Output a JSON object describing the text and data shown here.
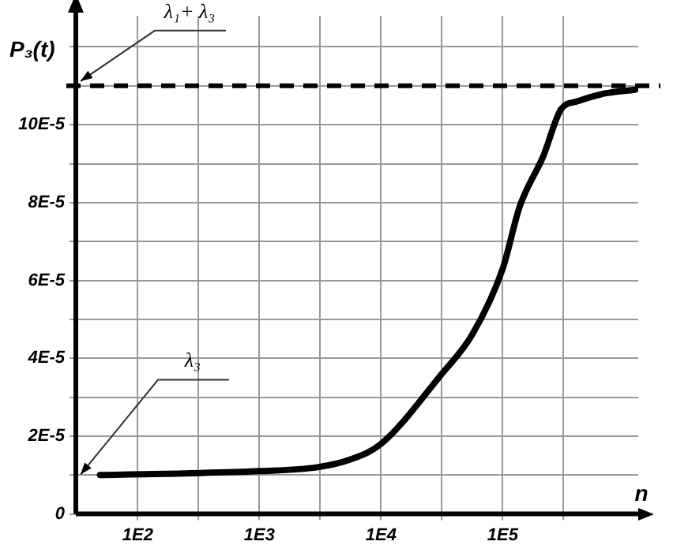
{
  "chart_data": {
    "type": "line",
    "xlabel": "n",
    "ylabel": "P₃(t)",
    "log": "x",
    "grid": true,
    "legend": false,
    "marker": "none",
    "line_style": "solid",
    "x": [
      49,
      1000,
      3000,
      5600,
      10000,
      31600,
      56000,
      100000,
      138000,
      216000,
      302000,
      410000,
      680000,
      1230000
    ],
    "series": [
      {
        "color": "#000000",
        "values": [
          1e-05,
          1.1e-05,
          1.2e-05,
          1.4e-05,
          1.8e-05,
          3.6e-05,
          4.6e-05,
          6.3e-05,
          7.9e-05,
          9.2e-05,
          0.000104,
          0.000106,
          0.000108,
          0.000109
        ]
      }
    ],
    "xlim": [
      31,
      1300000
    ],
    "xticks": [
      {
        "value": 100,
        "label": "1E2"
      },
      {
        "value": 316,
        "label": null
      },
      {
        "value": 1000,
        "label": "1E3"
      },
      {
        "value": 3162,
        "label": null
      },
      {
        "value": 10000,
        "label": "1E4"
      },
      {
        "value": 31623,
        "label": null
      },
      {
        "value": 100000,
        "label": "1E5"
      },
      {
        "value": 316228,
        "label": null
      }
    ],
    "ylim": [
      0,
      0.000128
    ],
    "yticks": [
      {
        "value": 0,
        "label": "0"
      },
      {
        "value": 1e-05,
        "label": null
      },
      {
        "value": 2e-05,
        "label": "2E-5"
      },
      {
        "value": 3e-05,
        "label": null
      },
      {
        "value": 4e-05,
        "label": "4E-5"
      },
      {
        "value": 5e-05,
        "label": null
      },
      {
        "value": 6e-05,
        "label": "6E-5"
      },
      {
        "value": 7e-05,
        "label": null
      },
      {
        "value": 8e-05,
        "label": "8E-5"
      },
      {
        "value": 9e-05,
        "label": null
      },
      {
        "value": 0.0001,
        "label": "10E-5"
      },
      {
        "value": 0.00011,
        "label": null
      },
      {
        "value": 0.00012,
        "label": null
      }
    ],
    "ref_lines": [
      {
        "axis": "y",
        "value": 0.00011,
        "label": "λ₁+ λ₃",
        "color": "#000000",
        "line_style": "dashed"
      }
    ],
    "annotations": [
      "λ₃"
    ]
  }
}
